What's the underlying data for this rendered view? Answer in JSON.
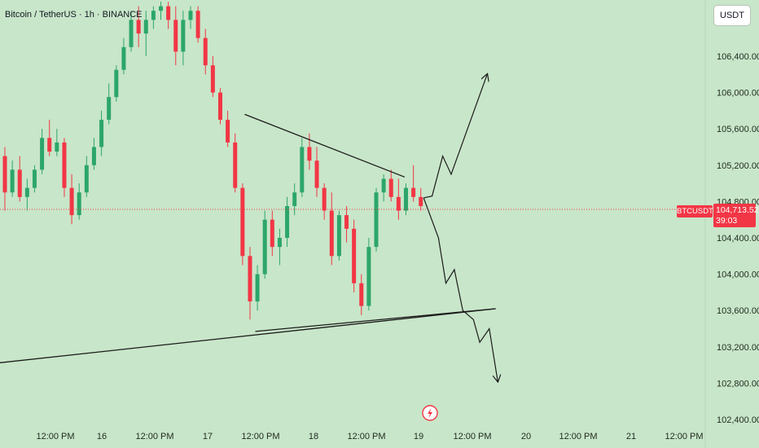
{
  "header": {
    "title": "Bitcoin / TetherUS · 1h · BINANCE"
  },
  "currency_button": {
    "label": "USDT"
  },
  "price_tag": {
    "symbol": "BTCUSDT",
    "price": "104,713.52",
    "countdown": "39:03"
  },
  "colors": {
    "background": "#c8e6c9",
    "up": "#2ca66a",
    "down": "#f23645",
    "line": "#1b1b1b",
    "tag": "#f23645"
  },
  "icons": {
    "bottom_marker": "lightning-bolt-icon"
  },
  "chart_data": {
    "type": "candlestick",
    "title": "Bitcoin / TetherUS · 1h · BINANCE",
    "yaxis": {
      "position": "right",
      "ticks": [
        106400,
        106000,
        105600,
        105200,
        104800,
        104400,
        104000,
        103600,
        103200,
        102800,
        102400
      ],
      "tick_labels": [
        "106,400.00",
        "106,000.00",
        "105,600.00",
        "105,200.00",
        "104,800.00",
        "104,400.00",
        "104,000.00",
        "103,600.00",
        "103,200.00",
        "102,800.00",
        "102,400.00"
      ],
      "range": [
        102400,
        106900
      ]
    },
    "xaxis": {
      "tick_labels": [
        "12:00 PM",
        "16",
        "12:00 PM",
        "17",
        "12:00 PM",
        "18",
        "12:00 PM",
        "19",
        "12:00 PM",
        "20",
        "12:00 PM",
        "21",
        "12:00 PM"
      ]
    },
    "last_price": 104713.52,
    "candles": [
      [
        105300,
        105400,
        104700,
        104900
      ],
      [
        104900,
        105250,
        104850,
        105150
      ],
      [
        105150,
        105300,
        104800,
        104850
      ],
      [
        104850,
        105050,
        104700,
        104950
      ],
      [
        104950,
        105200,
        104900,
        105150
      ],
      [
        105150,
        105600,
        105100,
        105500
      ],
      [
        105500,
        105700,
        105300,
        105350
      ],
      [
        105350,
        105600,
        105300,
        105450
      ],
      [
        105450,
        105500,
        104850,
        104950
      ],
      [
        104950,
        105100,
        104550,
        104650
      ],
      [
        104650,
        105000,
        104600,
        104900
      ],
      [
        104900,
        105300,
        104850,
        105200
      ],
      [
        105200,
        105500,
        105150,
        105400
      ],
      [
        105400,
        105800,
        105300,
        105700
      ],
      [
        105700,
        106100,
        105650,
        105950
      ],
      [
        105950,
        106300,
        105900,
        106250
      ],
      [
        106250,
        106600,
        106200,
        106500
      ],
      [
        106500,
        106900,
        106450,
        106800
      ],
      [
        106800,
        106950,
        106500,
        106650
      ],
      [
        106650,
        106900,
        106400,
        106800
      ],
      [
        106800,
        106950,
        106700,
        106900
      ],
      [
        106900,
        107000,
        106800,
        106950
      ],
      [
        106950,
        107000,
        106700,
        106800
      ],
      [
        106800,
        106950,
        106300,
        106450
      ],
      [
        106450,
        106900,
        106300,
        106800
      ],
      [
        106800,
        106950,
        106700,
        106900
      ],
      [
        106900,
        106950,
        106550,
        106600
      ],
      [
        106600,
        106700,
        106200,
        106300
      ],
      [
        106300,
        106400,
        105950,
        106000
      ],
      [
        106000,
        106050,
        105650,
        105700
      ],
      [
        105700,
        105800,
        105400,
        105450
      ],
      [
        105450,
        105550,
        104900,
        104950
      ],
      [
        104950,
        105000,
        104100,
        104200
      ],
      [
        104200,
        104300,
        103500,
        103700
      ],
      [
        103700,
        104100,
        103600,
        104000
      ],
      [
        104000,
        104700,
        103950,
        104600
      ],
      [
        104600,
        104700,
        104200,
        104300
      ],
      [
        104300,
        104500,
        104100,
        104400
      ],
      [
        104400,
        104850,
        104300,
        104750
      ],
      [
        104750,
        105000,
        104650,
        104900
      ],
      [
        104900,
        105500,
        104850,
        105400
      ],
      [
        105400,
        105550,
        105150,
        105250
      ],
      [
        105250,
        105400,
        104850,
        104950
      ],
      [
        104950,
        105000,
        104600,
        104700
      ],
      [
        104700,
        104900,
        104100,
        104200
      ],
      [
        104200,
        104700,
        104150,
        104650
      ],
      [
        104650,
        104750,
        104350,
        104500
      ],
      [
        104500,
        104600,
        103800,
        103900
      ],
      [
        103900,
        104000,
        103550,
        103650
      ],
      [
        103650,
        104400,
        103600,
        104300
      ],
      [
        104300,
        104950,
        104250,
        104900
      ],
      [
        104900,
        105100,
        104800,
        105050
      ],
      [
        105050,
        105150,
        104800,
        104850
      ],
      [
        104850,
        105050,
        104600,
        104700
      ],
      [
        104700,
        105000,
        104650,
        104950
      ],
      [
        104950,
        105200,
        104800,
        104850
      ],
      [
        104850,
        104950,
        104700,
        104750
      ]
    ],
    "annotations": [
      {
        "type": "trendline",
        "label": "descending resistance",
        "points": [
          [
            17.35,
            105760
          ],
          [
            18.86,
            105070
          ]
        ]
      },
      {
        "type": "trendline",
        "label": "ascending support (wide)",
        "points": [
          [
            15.0,
            103020
          ],
          [
            19.72,
            103620
          ]
        ]
      },
      {
        "type": "trendline",
        "label": "ascending support (inner)",
        "points": [
          [
            17.45,
            103370
          ],
          [
            19.72,
            103620
          ]
        ]
      },
      {
        "type": "arrow-path",
        "label": "bullish scenario",
        "points": [
          [
            19.04,
            104840
          ],
          [
            19.12,
            104860
          ],
          [
            19.22,
            105300
          ],
          [
            19.3,
            105100
          ],
          [
            19.64,
            106200
          ]
        ]
      },
      {
        "type": "arrow-path",
        "label": "bearish scenario",
        "points": [
          [
            19.04,
            104840
          ],
          [
            19.18,
            104400
          ],
          [
            19.25,
            103900
          ],
          [
            19.33,
            104050
          ],
          [
            19.41,
            103600
          ],
          [
            19.51,
            103500
          ],
          [
            19.57,
            103250
          ],
          [
            19.66,
            103400
          ],
          [
            19.74,
            102820
          ]
        ]
      }
    ]
  }
}
